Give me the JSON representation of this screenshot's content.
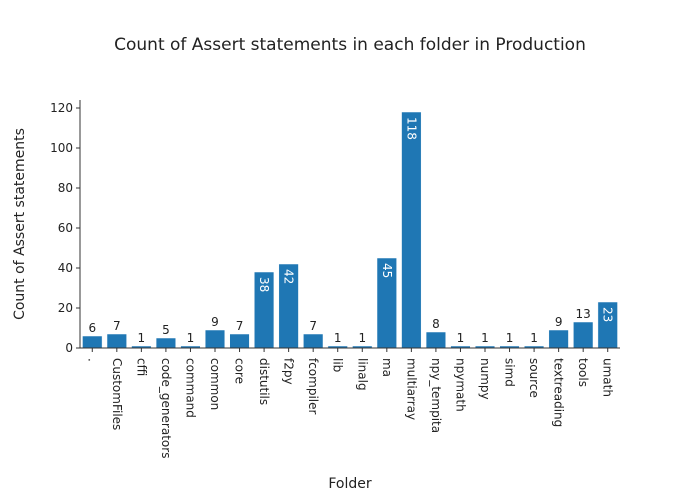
{
  "chart_data": {
    "type": "bar",
    "title": "Count of Assert statements in each folder in Production",
    "xlabel": "Folder",
    "ylabel": "Count of Assert statements",
    "ylim": [
      0,
      124
    ],
    "yticks": [
      0,
      20,
      40,
      60,
      80,
      100,
      120
    ],
    "categories": [
      ".",
      "CustomFiles",
      "cffi",
      "code_generators",
      "command",
      "common",
      "core",
      "distutils",
      "f2py",
      "fcompiler",
      "lib",
      "linalg",
      "ma",
      "multiarray",
      "npy_tempita",
      "npymath",
      "numpy",
      "simd",
      "source",
      "textreading",
      "tools",
      "umath"
    ],
    "values": [
      6,
      7,
      1,
      5,
      1,
      9,
      7,
      38,
      42,
      7,
      1,
      1,
      45,
      118,
      8,
      1,
      1,
      1,
      1,
      9,
      13,
      23
    ],
    "bar_color": "#1f77b4",
    "grid": false,
    "legend": "none"
  }
}
